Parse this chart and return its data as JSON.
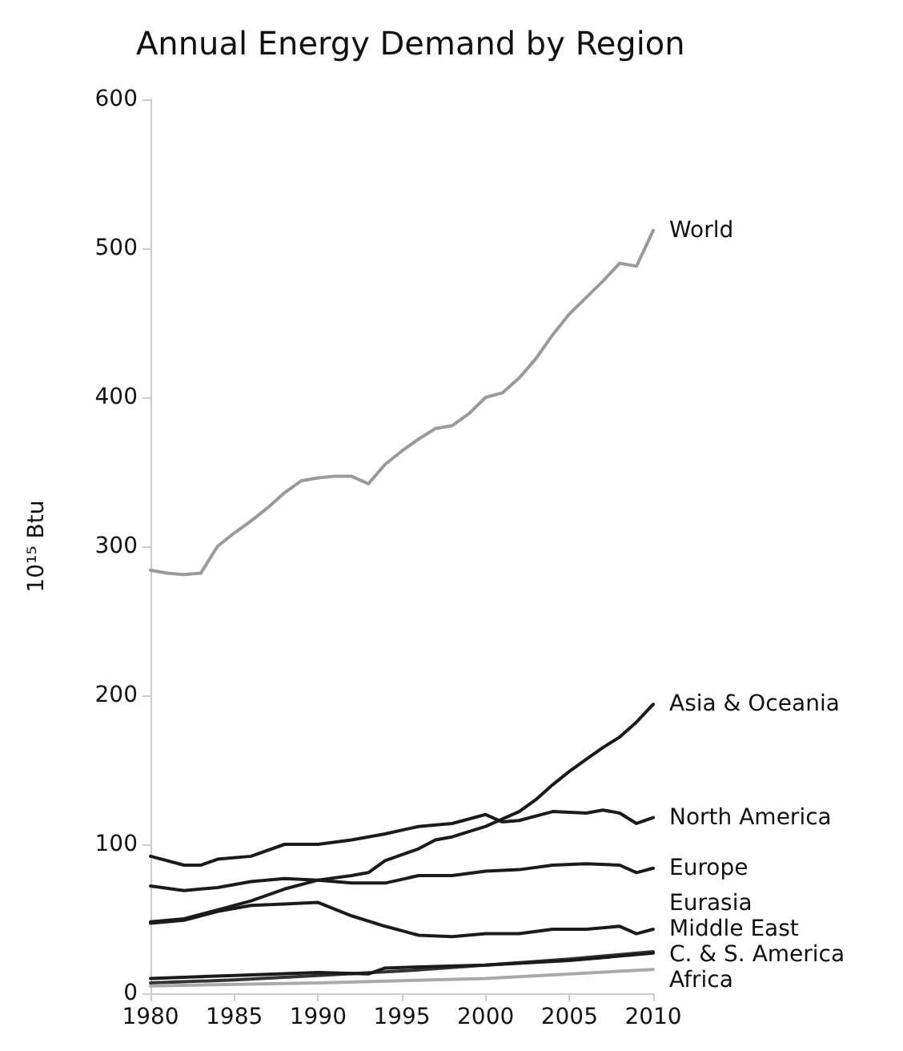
{
  "chart_data": {
    "type": "line",
    "title": "Annual Energy Demand by Region",
    "ylabel": "10¹⁵ Btu",
    "xlim": [
      1980,
      2010
    ],
    "xticks": [
      1980,
      1985,
      1990,
      1995,
      2000,
      2005,
      2010
    ],
    "ylim": [
      0,
      600
    ],
    "yticks": [
      0,
      100,
      200,
      300,
      400,
      500,
      600
    ],
    "grid": false,
    "legend": false,
    "marker": "none",
    "series": [
      {
        "name": "World",
        "color": "#9a9a9a",
        "x": [
          1980,
          1981,
          1982,
          1983,
          1984,
          1985,
          1986,
          1987,
          1988,
          1989,
          1990,
          1991,
          1992,
          1993,
          1994,
          1995,
          1996,
          1997,
          1998,
          1999,
          2000,
          2001,
          2002,
          2003,
          2004,
          2005,
          2006,
          2007,
          2008,
          2009,
          2010
        ],
        "values": [
          284,
          282,
          281,
          282,
          300,
          309,
          317,
          326,
          336,
          344,
          346,
          347,
          347,
          342,
          355,
          364,
          372,
          379,
          381,
          389,
          400,
          403,
          413,
          426,
          442,
          456,
          467,
          478,
          490,
          488,
          512
        ]
      },
      {
        "name": "Asia & Oceania",
        "color": "#1a1a1a",
        "x": [
          1980,
          1982,
          1984,
          1986,
          1988,
          1990,
          1992,
          1993,
          1994,
          1996,
          1997,
          1998,
          2000,
          2002,
          2003,
          2004,
          2005,
          2006,
          2007,
          2008,
          2009,
          2010
        ],
        "values": [
          48,
          50,
          56,
          62,
          70,
          76,
          79,
          81,
          89,
          97,
          103,
          105,
          112,
          122,
          130,
          140,
          149,
          157,
          165,
          172,
          182,
          194
        ]
      },
      {
        "name": "North America",
        "color": "#1a1a1a",
        "x": [
          1980,
          1982,
          1983,
          1984,
          1986,
          1988,
          1990,
          1992,
          1994,
          1996,
          1998,
          2000,
          2001,
          2002,
          2004,
          2006,
          2007,
          2008,
          2009,
          2010
        ],
        "values": [
          92,
          86,
          86,
          90,
          92,
          100,
          100,
          103,
          107,
          112,
          114,
          120,
          115,
          116,
          122,
          121,
          123,
          121,
          114,
          118
        ]
      },
      {
        "name": "Europe",
        "color": "#1a1a1a",
        "x": [
          1980,
          1982,
          1984,
          1986,
          1988,
          1990,
          1992,
          1994,
          1996,
          1998,
          2000,
          2002,
          2004,
          2006,
          2008,
          2009,
          2010
        ],
        "values": [
          72,
          69,
          71,
          75,
          77,
          76,
          74,
          74,
          79,
          79,
          82,
          83,
          86,
          87,
          86,
          81,
          84
        ]
      },
      {
        "name": "Eurasia",
        "color": "#1a1a1a",
        "x": [
          1980,
          1982,
          1984,
          1986,
          1988,
          1990,
          1992,
          1994,
          1996,
          1998,
          2000,
          2002,
          2004,
          2006,
          2008,
          2009,
          2010
        ],
        "values": [
          47,
          49,
          55,
          59,
          60,
          61,
          52,
          45,
          39,
          38,
          40,
          40,
          43,
          43,
          45,
          40,
          43
        ]
      },
      {
        "name": "Middle East",
        "color": "#333333",
        "x": [
          1980,
          1985,
          1990,
          1995,
          2000,
          2005,
          2010
        ],
        "values": [
          7,
          9,
          12,
          15,
          19,
          23,
          28
        ]
      },
      {
        "name": "C. & S. America",
        "color": "#1a1a1a",
        "x": [
          1980,
          1985,
          1990,
          1993,
          1994,
          2000,
          2005,
          2010
        ],
        "values": [
          10,
          12,
          14,
          13,
          17,
          19,
          22,
          27
        ]
      },
      {
        "name": "Africa",
        "color": "#aaaaaa",
        "x": [
          1980,
          1990,
          2000,
          2010
        ],
        "values": [
          5,
          7,
          10,
          16
        ]
      }
    ]
  }
}
